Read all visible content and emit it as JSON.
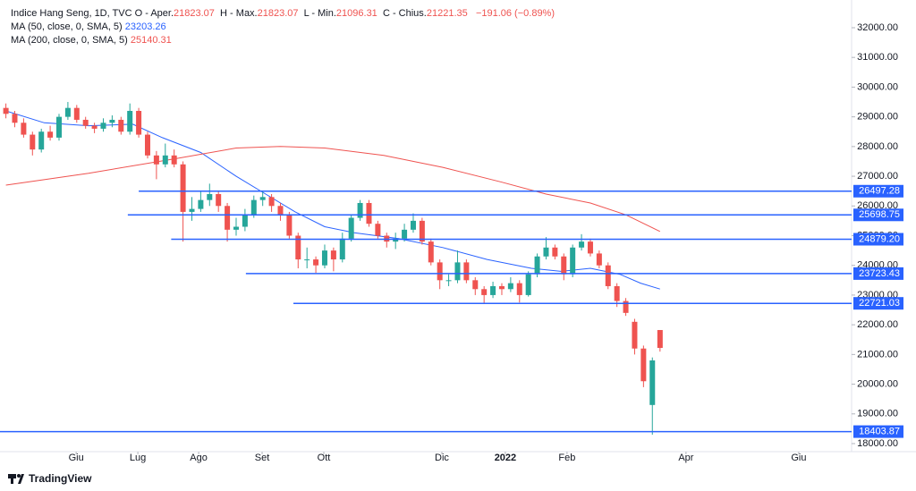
{
  "chart_data": {
    "type": "candlestick",
    "title": "Indice Hang Seng, 1D, TVC",
    "ohlc_labels": [
      {
        "key": "O",
        "name": "Aper."
      },
      {
        "key": "H",
        "name": "Max."
      },
      {
        "key": "L",
        "name": "Min."
      },
      {
        "key": "C",
        "name": "Chius."
      }
    ],
    "change": "−191.06 (−0.89%)",
    "up_color": "#26a69a",
    "down_color": "#ef5350",
    "xlim": [
      0,
      288.5
    ],
    "xticks": [
      {
        "value": 25.8,
        "label": "Giu"
      },
      {
        "value": 46.7,
        "label": "Lug"
      },
      {
        "value": 67.3,
        "label": "Ago"
      },
      {
        "value": 88.8,
        "label": "Set"
      },
      {
        "value": 109.7,
        "label": "Ott"
      },
      {
        "value": 149.7,
        "label": "Dic"
      },
      {
        "value": 171.2,
        "label": "2022"
      },
      {
        "value": 192.1,
        "label": "Feb"
      },
      {
        "value": 232.4,
        "label": "Apr"
      },
      {
        "value": 270.6,
        "label": "Giu"
      }
    ],
    "ylim": [
      17729,
      32933
    ],
    "yticks": [
      {
        "value": 18000,
        "label": "18000.00"
      },
      {
        "value": 19000,
        "label": "19000.00"
      },
      {
        "value": 20000,
        "label": "20000.00"
      },
      {
        "value": 21000,
        "label": "21000.00"
      },
      {
        "value": 22000,
        "label": "22000.00"
      },
      {
        "value": 23000,
        "label": "23000.00"
      },
      {
        "value": 24000,
        "label": "24000.00"
      },
      {
        "value": 25000,
        "label": "25000.00"
      },
      {
        "value": 26000,
        "label": "26000.00"
      },
      {
        "value": 27000,
        "label": "27000.00"
      },
      {
        "value": 28000,
        "label": "28000.00"
      },
      {
        "value": 29000,
        "label": "29000.00"
      },
      {
        "value": 30000,
        "label": "30000.00"
      },
      {
        "value": 31000,
        "label": "31000.00"
      },
      {
        "value": 32000,
        "label": "32000.00"
      }
    ],
    "candles": [
      [
        2,
        29300,
        29450,
        28950,
        29100
      ],
      [
        5,
        29100,
        29200,
        28650,
        28800
      ],
      [
        8,
        28800,
        28950,
        28300,
        28400
      ],
      [
        11,
        28400,
        28500,
        27700,
        27900
      ],
      [
        14,
        27900,
        28600,
        27800,
        28500
      ],
      [
        17,
        28500,
        28700,
        28200,
        28300
      ],
      [
        20,
        28300,
        29100,
        28200,
        29000
      ],
      [
        23,
        29000,
        29500,
        28900,
        29300
      ],
      [
        26,
        29300,
        29400,
        28800,
        28900
      ],
      [
        29,
        28900,
        29000,
        28600,
        28700
      ],
      [
        32,
        28700,
        28800,
        28450,
        28600
      ],
      [
        35,
        28600,
        28950,
        28500,
        28800
      ],
      [
        38,
        28800,
        29050,
        28650,
        28900
      ],
      [
        41,
        28900,
        29000,
        28400,
        28500
      ],
      [
        44,
        28500,
        29450,
        28400,
        29200
      ],
      [
        47,
        29200,
        29300,
        28300,
        28400
      ],
      [
        50,
        28400,
        28500,
        27600,
        27700
      ],
      [
        53,
        27700,
        27850,
        26900,
        27400
      ],
      [
        56,
        27400,
        28100,
        27300,
        27700
      ],
      [
        59,
        27700,
        27900,
        27300,
        27400
      ],
      [
        62,
        27400,
        27500,
        24800,
        25800
      ],
      [
        65,
        25800,
        26300,
        25500,
        25900
      ],
      [
        68,
        25900,
        26500,
        25800,
        26200
      ],
      [
        71,
        26200,
        26750,
        26000,
        26400
      ],
      [
        74,
        26400,
        26500,
        25800,
        26000
      ],
      [
        77,
        26000,
        26100,
        24800,
        25200
      ],
      [
        80,
        25200,
        25600,
        25000,
        25300
      ],
      [
        83,
        25300,
        25900,
        25150,
        25700
      ],
      [
        86,
        25700,
        26350,
        25600,
        26200
      ],
      [
        89,
        26200,
        26500,
        26000,
        26300
      ],
      [
        92,
        26300,
        26400,
        25800,
        26000
      ],
      [
        95,
        26000,
        26100,
        25500,
        25700
      ],
      [
        98,
        25700,
        25800,
        24900,
        25000
      ],
      [
        101,
        25000,
        25100,
        23900,
        24200
      ],
      [
        104,
        24200,
        24600,
        23900,
        24200
      ],
      [
        107,
        24200,
        24300,
        23750,
        24000
      ],
      [
        110,
        24000,
        24700,
        23900,
        24500
      ],
      [
        113,
        24500,
        24600,
        23800,
        24200
      ],
      [
        116,
        24200,
        25100,
        24100,
        24900
      ],
      [
        119,
        24900,
        25700,
        24800,
        25600
      ],
      [
        122,
        25600,
        26200,
        25500,
        26100
      ],
      [
        125,
        26100,
        26200,
        25300,
        25400
      ],
      [
        128,
        25400,
        25500,
        24900,
        25000
      ],
      [
        131,
        25000,
        25100,
        24600,
        24800
      ],
      [
        134,
        24800,
        25100,
        24550,
        24900
      ],
      [
        137,
        24900,
        25400,
        24800,
        25200
      ],
      [
        140,
        25200,
        25750,
        25100,
        25500
      ],
      [
        143,
        25500,
        25600,
        24700,
        24800
      ],
      [
        146,
        24800,
        24900,
        24000,
        24100
      ],
      [
        149,
        24100,
        24200,
        23200,
        23500
      ],
      [
        152,
        23500,
        23700,
        23300,
        23500
      ],
      [
        155,
        23500,
        24500,
        23400,
        24100
      ],
      [
        158,
        24100,
        24200,
        23400,
        23500
      ],
      [
        161,
        23500,
        23600,
        23000,
        23200
      ],
      [
        164,
        23200,
        23300,
        22700,
        23000
      ],
      [
        167,
        23000,
        23450,
        22900,
        23300
      ],
      [
        170,
        23300,
        23400,
        23000,
        23200
      ],
      [
        173,
        23200,
        23600,
        23100,
        23400
      ],
      [
        176,
        23400,
        23500,
        22750,
        23000
      ],
      [
        179,
        23000,
        23800,
        22950,
        23700
      ],
      [
        182,
        23700,
        24400,
        23600,
        24300
      ],
      [
        185,
        24300,
        24950,
        24200,
        24600
      ],
      [
        188,
        24600,
        24700,
        24200,
        24300
      ],
      [
        191,
        24300,
        24400,
        23500,
        23700
      ],
      [
        194,
        23700,
        24700,
        23600,
        24600
      ],
      [
        197,
        24600,
        25050,
        24500,
        24800
      ],
      [
        200,
        24800,
        24900,
        24300,
        24400
      ],
      [
        203,
        24400,
        24500,
        23900,
        24000
      ],
      [
        206,
        24000,
        24100,
        23200,
        23300
      ],
      [
        209,
        23300,
        23400,
        22600,
        22800
      ],
      [
        212,
        22800,
        22900,
        22300,
        22400
      ],
      [
        215,
        22100,
        22200,
        21000,
        21200
      ],
      [
        218,
        21200,
        21300,
        19900,
        20100
      ],
      [
        221,
        19300,
        20900,
        18300,
        20800
      ],
      [
        223.6,
        21823.07,
        21823.07,
        21096.31,
        21221.35
      ]
    ],
    "series": [
      {
        "name": "MA (50, close, 0, SMA, 5)",
        "color": "#2962ff",
        "x": [
          2,
          15,
          30,
          45,
          55,
          68,
          80,
          90,
          100,
          110,
          120,
          135,
          150,
          165,
          180,
          190,
          200,
          210,
          217,
          223.6
        ],
        "values": [
          29200,
          28800,
          28700,
          28750,
          28300,
          27800,
          27000,
          26400,
          25800,
          25300,
          25100,
          24900,
          24600,
          24200,
          23900,
          23800,
          23900,
          23700,
          23400,
          23203.26
        ]
      },
      {
        "name": "MA (200, close, 0, SMA, 5)",
        "color": "#ef5350",
        "x": [
          2,
          30,
          60,
          80,
          95,
          110,
          130,
          150,
          170,
          185,
          200,
          212,
          223.6
        ],
        "values": [
          26700,
          27100,
          27600,
          27950,
          28000,
          27950,
          27700,
          27300,
          26800,
          26400,
          26100,
          25700,
          25140.31
        ]
      }
    ],
    "levels_color": "#2962ff",
    "levels": [
      {
        "value": 26497.28,
        "start": 47
      },
      {
        "value": 25698.75,
        "start": 43.3
      },
      {
        "value": 24879.2,
        "label": "24879.20",
        "start": 58
      },
      {
        "value": 23723.43,
        "start": 83.3
      },
      {
        "value": 22721.03,
        "start": 99.4
      },
      {
        "value": 18403.87,
        "start": 0
      }
    ],
    "footer": "TradingView"
  }
}
